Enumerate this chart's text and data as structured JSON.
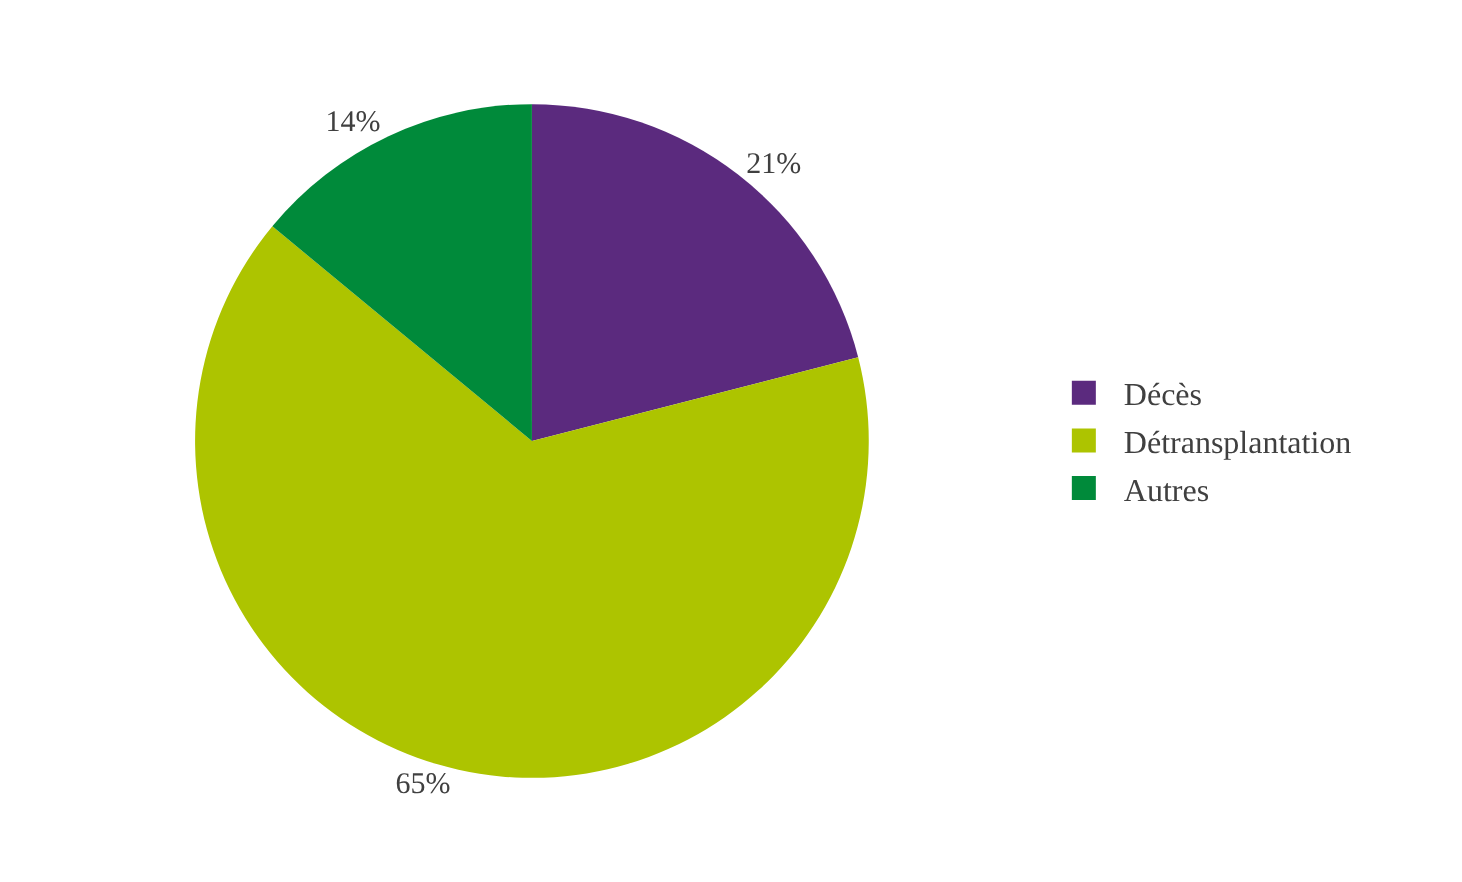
{
  "chart_data": {
    "type": "pie",
    "categories": [
      "Décès",
      "Détransplantation",
      "Autres"
    ],
    "values": [
      21,
      65,
      14
    ],
    "value_labels": [
      "21%",
      "65%",
      "14%"
    ],
    "colors": [
      "#5b2a7e",
      "#adc400",
      "#008a3a"
    ],
    "legend": "right"
  }
}
